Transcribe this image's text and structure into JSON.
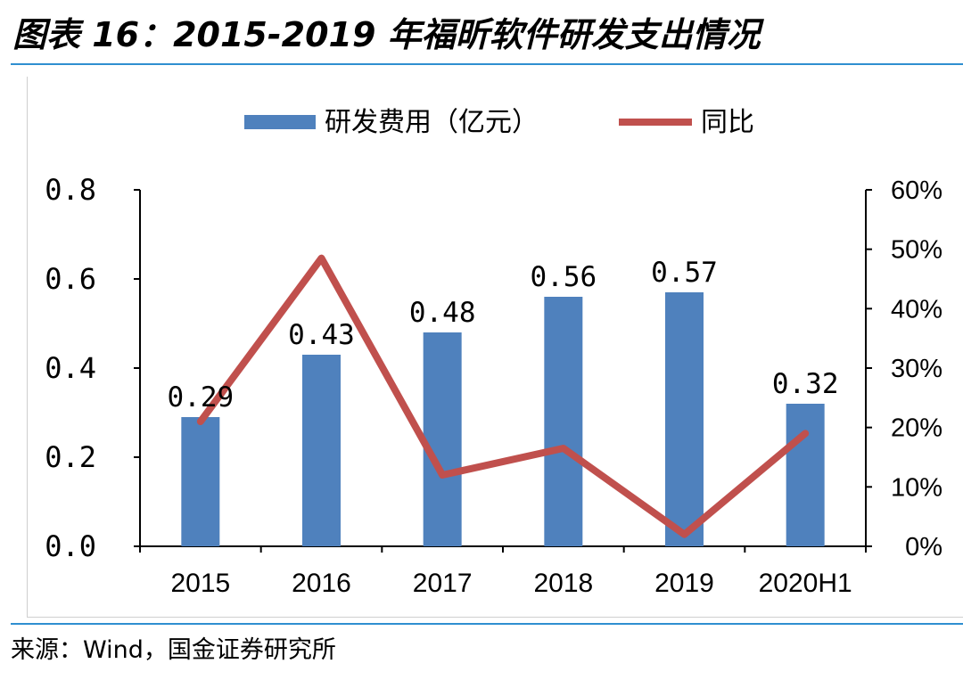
{
  "figure": {
    "title": "图表 16：2015-2019 年福昕软件研发支出情况",
    "source": "来源：Wind，国金证券研究所"
  },
  "chart_data": {
    "type": "bar",
    "categories": [
      "2015",
      "2016",
      "2017",
      "2018",
      "2019",
      "2020H1"
    ],
    "series": [
      {
        "name": "研发费用（亿元）",
        "type": "bar",
        "axis": "left",
        "color": "#4f81bd",
        "values": [
          0.29,
          0.43,
          0.48,
          0.56,
          0.57,
          0.32
        ],
        "labels": [
          "0.29",
          "0.43",
          "0.48",
          "0.56",
          "0.57",
          "0.32"
        ]
      },
      {
        "name": "同比",
        "type": "line",
        "axis": "right",
        "color": "#c0504d",
        "values": [
          0.21,
          0.485,
          0.12,
          0.165,
          0.02,
          0.19
        ]
      }
    ],
    "y_left": {
      "lim": [
        0,
        0.8
      ],
      "ticks": [
        "0.0",
        "0.2",
        "0.4",
        "0.6",
        "0.8"
      ]
    },
    "y_right": {
      "lim": [
        0,
        0.6
      ],
      "ticks": [
        "0%",
        "10%",
        "20%",
        "30%",
        "40%",
        "50%",
        "60%"
      ]
    },
    "legend": "top",
    "grid": false
  }
}
